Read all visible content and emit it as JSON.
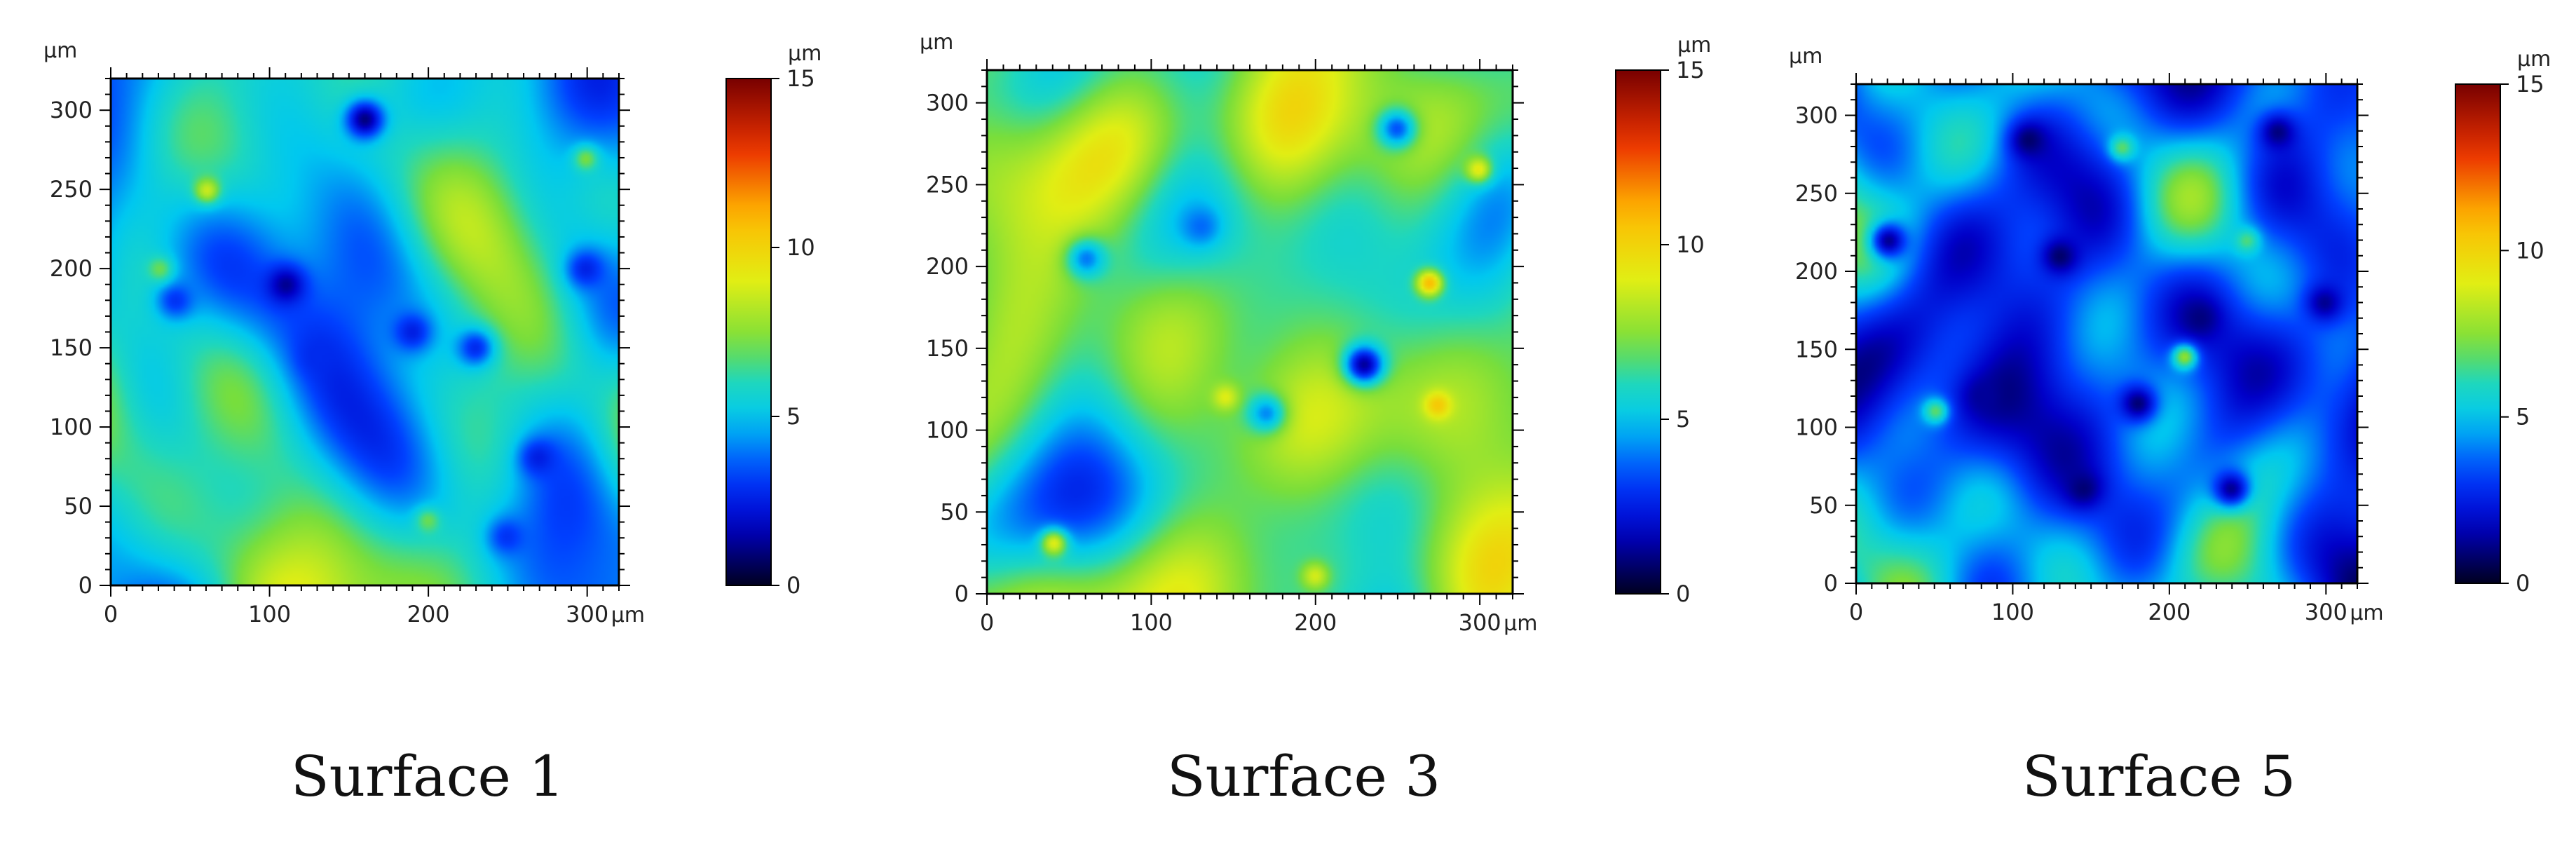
{
  "chart_data": [
    {
      "type": "heatmap",
      "title": "Surface 1",
      "x_unit": "µm",
      "y_unit": "µm",
      "colorbar_unit": "µm",
      "xlim": [
        0,
        320
      ],
      "ylim": [
        0,
        320
      ],
      "x_ticks": [
        0,
        100,
        200,
        300
      ],
      "y_ticks": [
        0,
        50,
        100,
        150,
        200,
        250,
        300
      ],
      "colorbar_range": [
        0,
        15
      ],
      "colorbar_ticks": [
        0,
        5,
        10,
        15
      ],
      "height_mean": 5.2,
      "height_spread": 1.3,
      "pits": [
        [
          160,
          295,
          1.0
        ],
        [
          110,
          190,
          1.2
        ],
        [
          190,
          160,
          2.5
        ],
        [
          230,
          150,
          2.8
        ],
        [
          270,
          80,
          2.5
        ],
        [
          130,
          145,
          2.8
        ],
        [
          300,
          200,
          2.6
        ],
        [
          40,
          180,
          3.0
        ],
        [
          250,
          30,
          3.0
        ]
      ],
      "peaks": [
        [
          60,
          250,
          8.6
        ],
        [
          300,
          270,
          7.2
        ],
        [
          30,
          200,
          7.0
        ],
        [
          200,
          40,
          7.0
        ]
      ]
    },
    {
      "type": "heatmap",
      "title": "Surface 3",
      "x_unit": "µm",
      "y_unit": "µm",
      "colorbar_unit": "µm",
      "xlim": [
        0,
        320
      ],
      "ylim": [
        0,
        320
      ],
      "x_ticks": [
        0,
        100,
        200,
        300
      ],
      "y_ticks": [
        0,
        50,
        100,
        150,
        200,
        250,
        300
      ],
      "colorbar_range": [
        0,
        15
      ],
      "colorbar_ticks": [
        0,
        5,
        10,
        15
      ],
      "height_mean": 7.0,
      "height_spread": 1.2,
      "pits": [
        [
          230,
          140,
          1.3
        ],
        [
          250,
          285,
          3.5
        ],
        [
          130,
          225,
          3.8
        ],
        [
          60,
          205,
          4.0
        ],
        [
          170,
          110,
          4.2
        ]
      ],
      "peaks": [
        [
          270,
          190,
          10.8
        ],
        [
          275,
          115,
          10.4
        ],
        [
          145,
          120,
          9.0
        ],
        [
          40,
          30,
          9.0
        ],
        [
          300,
          260,
          9.2
        ],
        [
          200,
          10,
          8.8
        ]
      ]
    },
    {
      "type": "heatmap",
      "title": "Surface 5",
      "x_unit": "µm",
      "y_unit": "µm",
      "colorbar_unit": "µm",
      "xlim": [
        0,
        320
      ],
      "ylim": [
        0,
        320
      ],
      "x_ticks": [
        0,
        100,
        200,
        300
      ],
      "y_ticks": [
        0,
        50,
        100,
        150,
        200,
        250,
        300
      ],
      "colorbar_range": [
        0,
        15
      ],
      "colorbar_ticks": [
        0,
        5,
        10,
        15
      ],
      "height_mean": 4.1,
      "height_spread": 1.5,
      "pits": [
        [
          110,
          285,
          0.8
        ],
        [
          130,
          210,
          0.8
        ],
        [
          180,
          115,
          0.9
        ],
        [
          145,
          60,
          0.9
        ],
        [
          220,
          170,
          1.0
        ],
        [
          270,
          290,
          1.0
        ],
        [
          20,
          220,
          1.2
        ],
        [
          300,
          180,
          1.2
        ],
        [
          80,
          120,
          1.3
        ],
        [
          240,
          60,
          1.2
        ]
      ],
      "peaks": [
        [
          210,
          145,
          7.6
        ],
        [
          170,
          280,
          6.8
        ],
        [
          50,
          110,
          6.8
        ],
        [
          250,
          220,
          6.6
        ]
      ]
    }
  ]
}
